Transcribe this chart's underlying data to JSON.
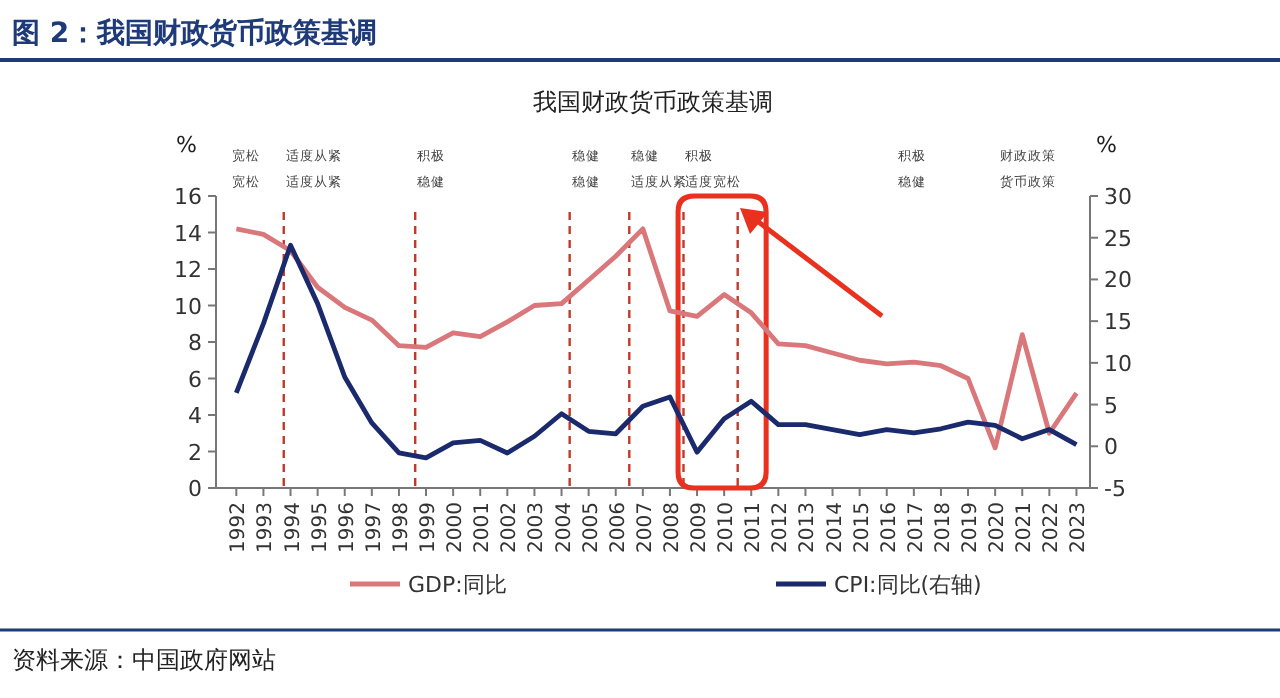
{
  "chart_data": {
    "type": "line",
    "title": "图 2：我国财政货币政策基调",
    "subtitle": "我国财政货币政策基调",
    "ylabel": "%",
    "y2label": "%",
    "x": [
      1992,
      1993,
      1994,
      1995,
      1996,
      1997,
      1998,
      1999,
      2000,
      2001,
      2002,
      2003,
      2004,
      2005,
      2006,
      2007,
      2008,
      2009,
      2010,
      2011,
      2012,
      2013,
      2014,
      2015,
      2016,
      2017,
      2018,
      2019,
      2020,
      2021,
      2022,
      2023
    ],
    "xlim": [
      1991.25,
      2023.5
    ],
    "xticks": [
      1992,
      1993,
      1994,
      1995,
      1996,
      1997,
      1998,
      1999,
      2000,
      2001,
      2002,
      2003,
      2004,
      2005,
      2006,
      2007,
      2008,
      2009,
      2010,
      2011,
      2012,
      2013,
      2014,
      2015,
      2016,
      2017,
      2018,
      2019,
      2020,
      2021,
      2022,
      2023
    ],
    "ylim": [
      0,
      16
    ],
    "yticks": [
      0,
      2,
      4,
      6,
      8,
      10,
      12,
      14,
      16
    ],
    "y2lim": [
      -5,
      30
    ],
    "y2ticks": [
      -5,
      0,
      5,
      10,
      15,
      20,
      25,
      30
    ],
    "series": [
      {
        "name": "GDP:同比",
        "color": "#d9777a",
        "values": [
          14.2,
          13.9,
          13.0,
          11.0,
          9.9,
          9.2,
          7.8,
          7.7,
          8.5,
          8.3,
          9.1,
          10.0,
          10.1,
          11.4,
          12.7,
          14.2,
          9.7,
          9.4,
          10.6,
          9.6,
          7.9,
          7.8,
          7.4,
          7.0,
          6.8,
          6.9,
          6.7,
          6.0,
          2.2,
          8.4,
          3.0,
          5.2
        ]
      },
      {
        "name": "CPI:同比(右轴)",
        "color": "#1a2a6c",
        "axis": "y2",
        "values": [
          6.4,
          14.7,
          24.1,
          17.1,
          8.3,
          2.8,
          -0.8,
          -1.4,
          0.4,
          0.7,
          -0.8,
          1.2,
          3.9,
          1.8,
          1.5,
          4.8,
          5.9,
          -0.7,
          3.3,
          5.4,
          2.6,
          2.6,
          2.0,
          1.4,
          2.0,
          1.6,
          2.1,
          2.9,
          2.5,
          0.9,
          2.0,
          0.2
        ]
      }
    ],
    "ref_lines": [
      {
        "axis": "x",
        "value": 1993.75,
        "color": "#c0392b",
        "line_style": "dashed"
      },
      {
        "axis": "x",
        "value": 1998.6,
        "color": "#c0392b",
        "line_style": "dashed"
      },
      {
        "axis": "x",
        "value": 2004.3,
        "color": "#c0392b",
        "line_style": "dashed"
      },
      {
        "axis": "x",
        "value": 2006.5,
        "color": "#c0392b",
        "line_style": "dashed"
      },
      {
        "axis": "x",
        "value": 2008.5,
        "color": "#c0392b",
        "line_style": "dashed"
      },
      {
        "axis": "x",
        "value": 2010.5,
        "color": "#c0392b",
        "line_style": "dashed"
      }
    ],
    "bands": [
      {
        "axis": "x",
        "from": 2008.3,
        "to": 2011.55,
        "color": "#e8321f"
      }
    ],
    "annotations": [
      "宽松",
      "宽松",
      "适度从紧",
      "适度从紧",
      "积极",
      "稳健",
      "稳健",
      "稳健",
      "稳健",
      "适度从紧",
      "积极",
      "适度宽松",
      "积极",
      "稳健",
      "财政政策",
      "货币政策",
      "资料来源：中国政府网站"
    ],
    "legend": "bottom",
    "grid": false,
    "marker": "none",
    "line_style": "solid"
  }
}
